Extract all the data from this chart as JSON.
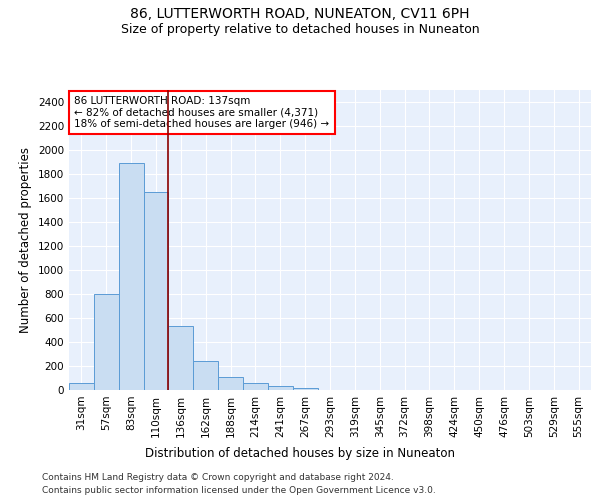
{
  "title": "86, LUTTERWORTH ROAD, NUNEATON, CV11 6PH",
  "subtitle": "Size of property relative to detached houses in Nuneaton",
  "xlabel": "Distribution of detached houses by size in Nuneaton",
  "ylabel": "Number of detached properties",
  "categories": [
    "31sqm",
    "57sqm",
    "83sqm",
    "110sqm",
    "136sqm",
    "162sqm",
    "188sqm",
    "214sqm",
    "241sqm",
    "267sqm",
    "293sqm",
    "319sqm",
    "345sqm",
    "372sqm",
    "398sqm",
    "424sqm",
    "450sqm",
    "476sqm",
    "503sqm",
    "529sqm",
    "555sqm"
  ],
  "values": [
    55,
    800,
    1890,
    1650,
    535,
    238,
    105,
    55,
    30,
    18,
    0,
    0,
    0,
    0,
    0,
    0,
    0,
    0,
    0,
    0,
    0
  ],
  "bar_color": "#c9ddf2",
  "bar_edge_color": "#5b9bd5",
  "vline_color": "#8b0000",
  "annotation_text": "86 LUTTERWORTH ROAD: 137sqm\n← 82% of detached houses are smaller (4,371)\n18% of semi-detached houses are larger (946) →",
  "annotation_box_color": "white",
  "annotation_box_edge_color": "red",
  "ylim": [
    0,
    2500
  ],
  "yticks": [
    0,
    200,
    400,
    600,
    800,
    1000,
    1200,
    1400,
    1600,
    1800,
    2000,
    2200,
    2400
  ],
  "footer_line1": "Contains HM Land Registry data © Crown copyright and database right 2024.",
  "footer_line2": "Contains public sector information licensed under the Open Government Licence v3.0.",
  "background_color": "#e8f0fc",
  "grid_color": "#ffffff",
  "title_fontsize": 10,
  "subtitle_fontsize": 9,
  "axis_label_fontsize": 8.5,
  "tick_fontsize": 7.5,
  "footer_fontsize": 6.5
}
